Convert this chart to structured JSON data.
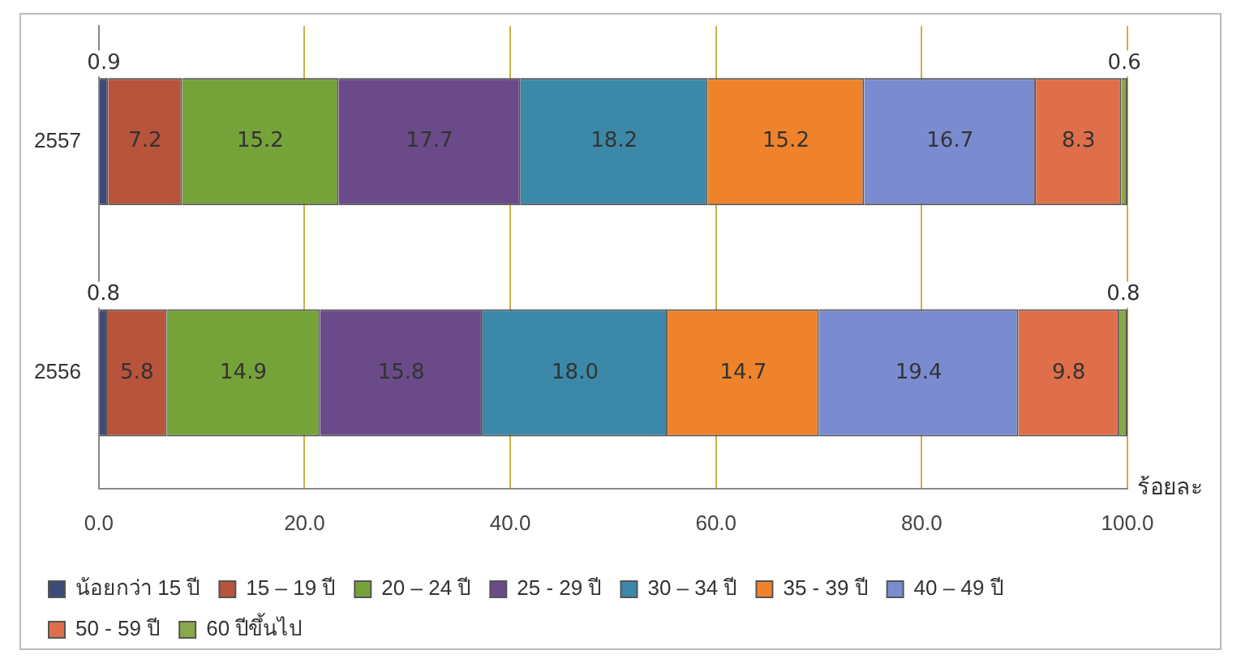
{
  "chart_data": {
    "type": "bar",
    "orientation": "horizontal",
    "stacked": true,
    "categories": [
      "2557",
      "2556"
    ],
    "xlabel": "ร้อยละ",
    "xlim": [
      0,
      100
    ],
    "xticks": [
      {
        "value": 0,
        "label": "0.0"
      },
      {
        "value": 20,
        "label": "20.0"
      },
      {
        "value": 40,
        "label": "40.0"
      },
      {
        "value": 60,
        "label": "60.0"
      },
      {
        "value": 80,
        "label": "80.0"
      },
      {
        "value": 100,
        "label": "100.0"
      }
    ],
    "grid": "x",
    "legend": "bottom",
    "series": [
      {
        "name": "น้อยกว่า 15 ปี",
        "color": "#3b4a78",
        "values": [
          0.9,
          0.8
        ],
        "value_labels": [
          "0.9",
          "0.8"
        ]
      },
      {
        "name": "15 – 19 ปี",
        "color": "#b8533c",
        "values": [
          7.2,
          5.8
        ],
        "value_labels": [
          "7.2",
          "5.8"
        ]
      },
      {
        "name": "20 – 24 ปี",
        "color": "#76a23a",
        "values": [
          15.2,
          14.9
        ],
        "value_labels": [
          "15.2",
          "14.9"
        ]
      },
      {
        "name": "25 - 29 ปี",
        "color": "#6a4a88",
        "values": [
          17.7,
          15.8
        ],
        "value_labels": [
          "17.7",
          "15.8"
        ]
      },
      {
        "name": "30 – 34 ปี",
        "color": "#3b88a8",
        "values": [
          18.2,
          18.0
        ],
        "value_labels": [
          "18.2",
          "18.0"
        ]
      },
      {
        "name": "35 - 39 ปี",
        "color": "#ef832c",
        "values": [
          15.2,
          14.7
        ],
        "value_labels": [
          "15.2",
          "14.7"
        ]
      },
      {
        "name": "40 – 49 ปี",
        "color": "#7a8ccf",
        "values": [
          16.7,
          19.4
        ],
        "value_labels": [
          "16.7",
          "19.4"
        ]
      },
      {
        "name": "50 - 59 ปี",
        "color": "#df6f4a",
        "values": [
          8.3,
          9.8
        ],
        "value_labels": [
          "8.3",
          "9.8"
        ]
      },
      {
        "name": "60 ปีขึ้นไป",
        "color": "#8aa74a",
        "values": [
          0.6,
          0.8
        ],
        "value_labels": [
          "0.6",
          "0.8"
        ]
      }
    ]
  }
}
